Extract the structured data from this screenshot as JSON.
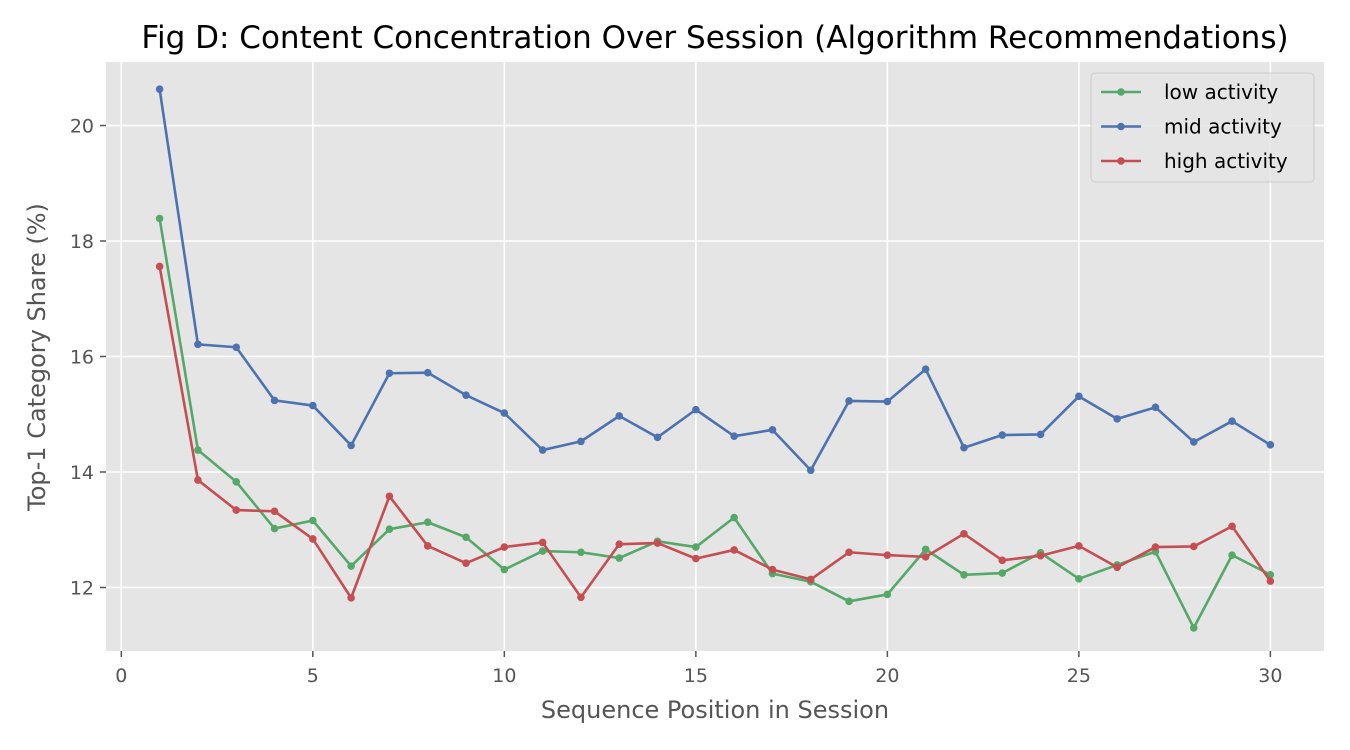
{
  "chart_data": {
    "type": "line",
    "title": "Fig D: Content Concentration Over Session (Algorithm Recommendations)",
    "xlabel": "Sequence Position in Session",
    "ylabel": "Top-1 Category Share (%)",
    "xlim": [
      -0.4,
      31.4
    ],
    "ylim": [
      10.9,
      21.1
    ],
    "xticks": [
      0,
      5,
      10,
      15,
      20,
      25,
      30
    ],
    "yticks": [
      12,
      14,
      16,
      18,
      20
    ],
    "grid": true,
    "legend_position": "top-right",
    "x": [
      1,
      2,
      3,
      4,
      5,
      6,
      7,
      8,
      9,
      10,
      11,
      12,
      13,
      14,
      15,
      16,
      17,
      18,
      19,
      20,
      21,
      22,
      23,
      24,
      25,
      26,
      27,
      28,
      29,
      30
    ],
    "series": [
      {
        "name": "low activity",
        "color": "#55a868",
        "values": [
          18.39,
          14.38,
          13.83,
          13.02,
          13.16,
          12.37,
          13.01,
          13.13,
          12.87,
          12.31,
          12.63,
          12.61,
          12.51,
          12.8,
          12.7,
          13.21,
          12.24,
          12.1,
          11.76,
          11.88,
          12.66,
          12.22,
          12.25,
          12.6,
          12.15,
          12.39,
          12.62,
          11.3,
          12.56,
          12.22
        ]
      },
      {
        "name": "mid activity",
        "color": "#4c72b0",
        "values": [
          20.63,
          16.21,
          16.16,
          15.24,
          15.15,
          14.46,
          15.71,
          15.72,
          15.33,
          15.02,
          14.38,
          14.53,
          14.97,
          14.6,
          15.08,
          14.62,
          14.73,
          14.03,
          15.23,
          15.22,
          15.78,
          14.42,
          14.64,
          14.65,
          15.31,
          14.92,
          15.12,
          14.52,
          14.88,
          14.47
        ]
      },
      {
        "name": "high activity",
        "color": "#c44e52",
        "values": [
          17.56,
          13.86,
          13.34,
          13.32,
          12.84,
          11.82,
          13.58,
          12.72,
          12.42,
          12.7,
          12.78,
          11.83,
          12.75,
          12.77,
          12.5,
          12.65,
          12.31,
          12.14,
          12.61,
          12.56,
          12.53,
          12.93,
          12.47,
          12.55,
          12.72,
          12.35,
          12.7,
          12.71,
          13.06,
          12.11
        ]
      }
    ]
  }
}
